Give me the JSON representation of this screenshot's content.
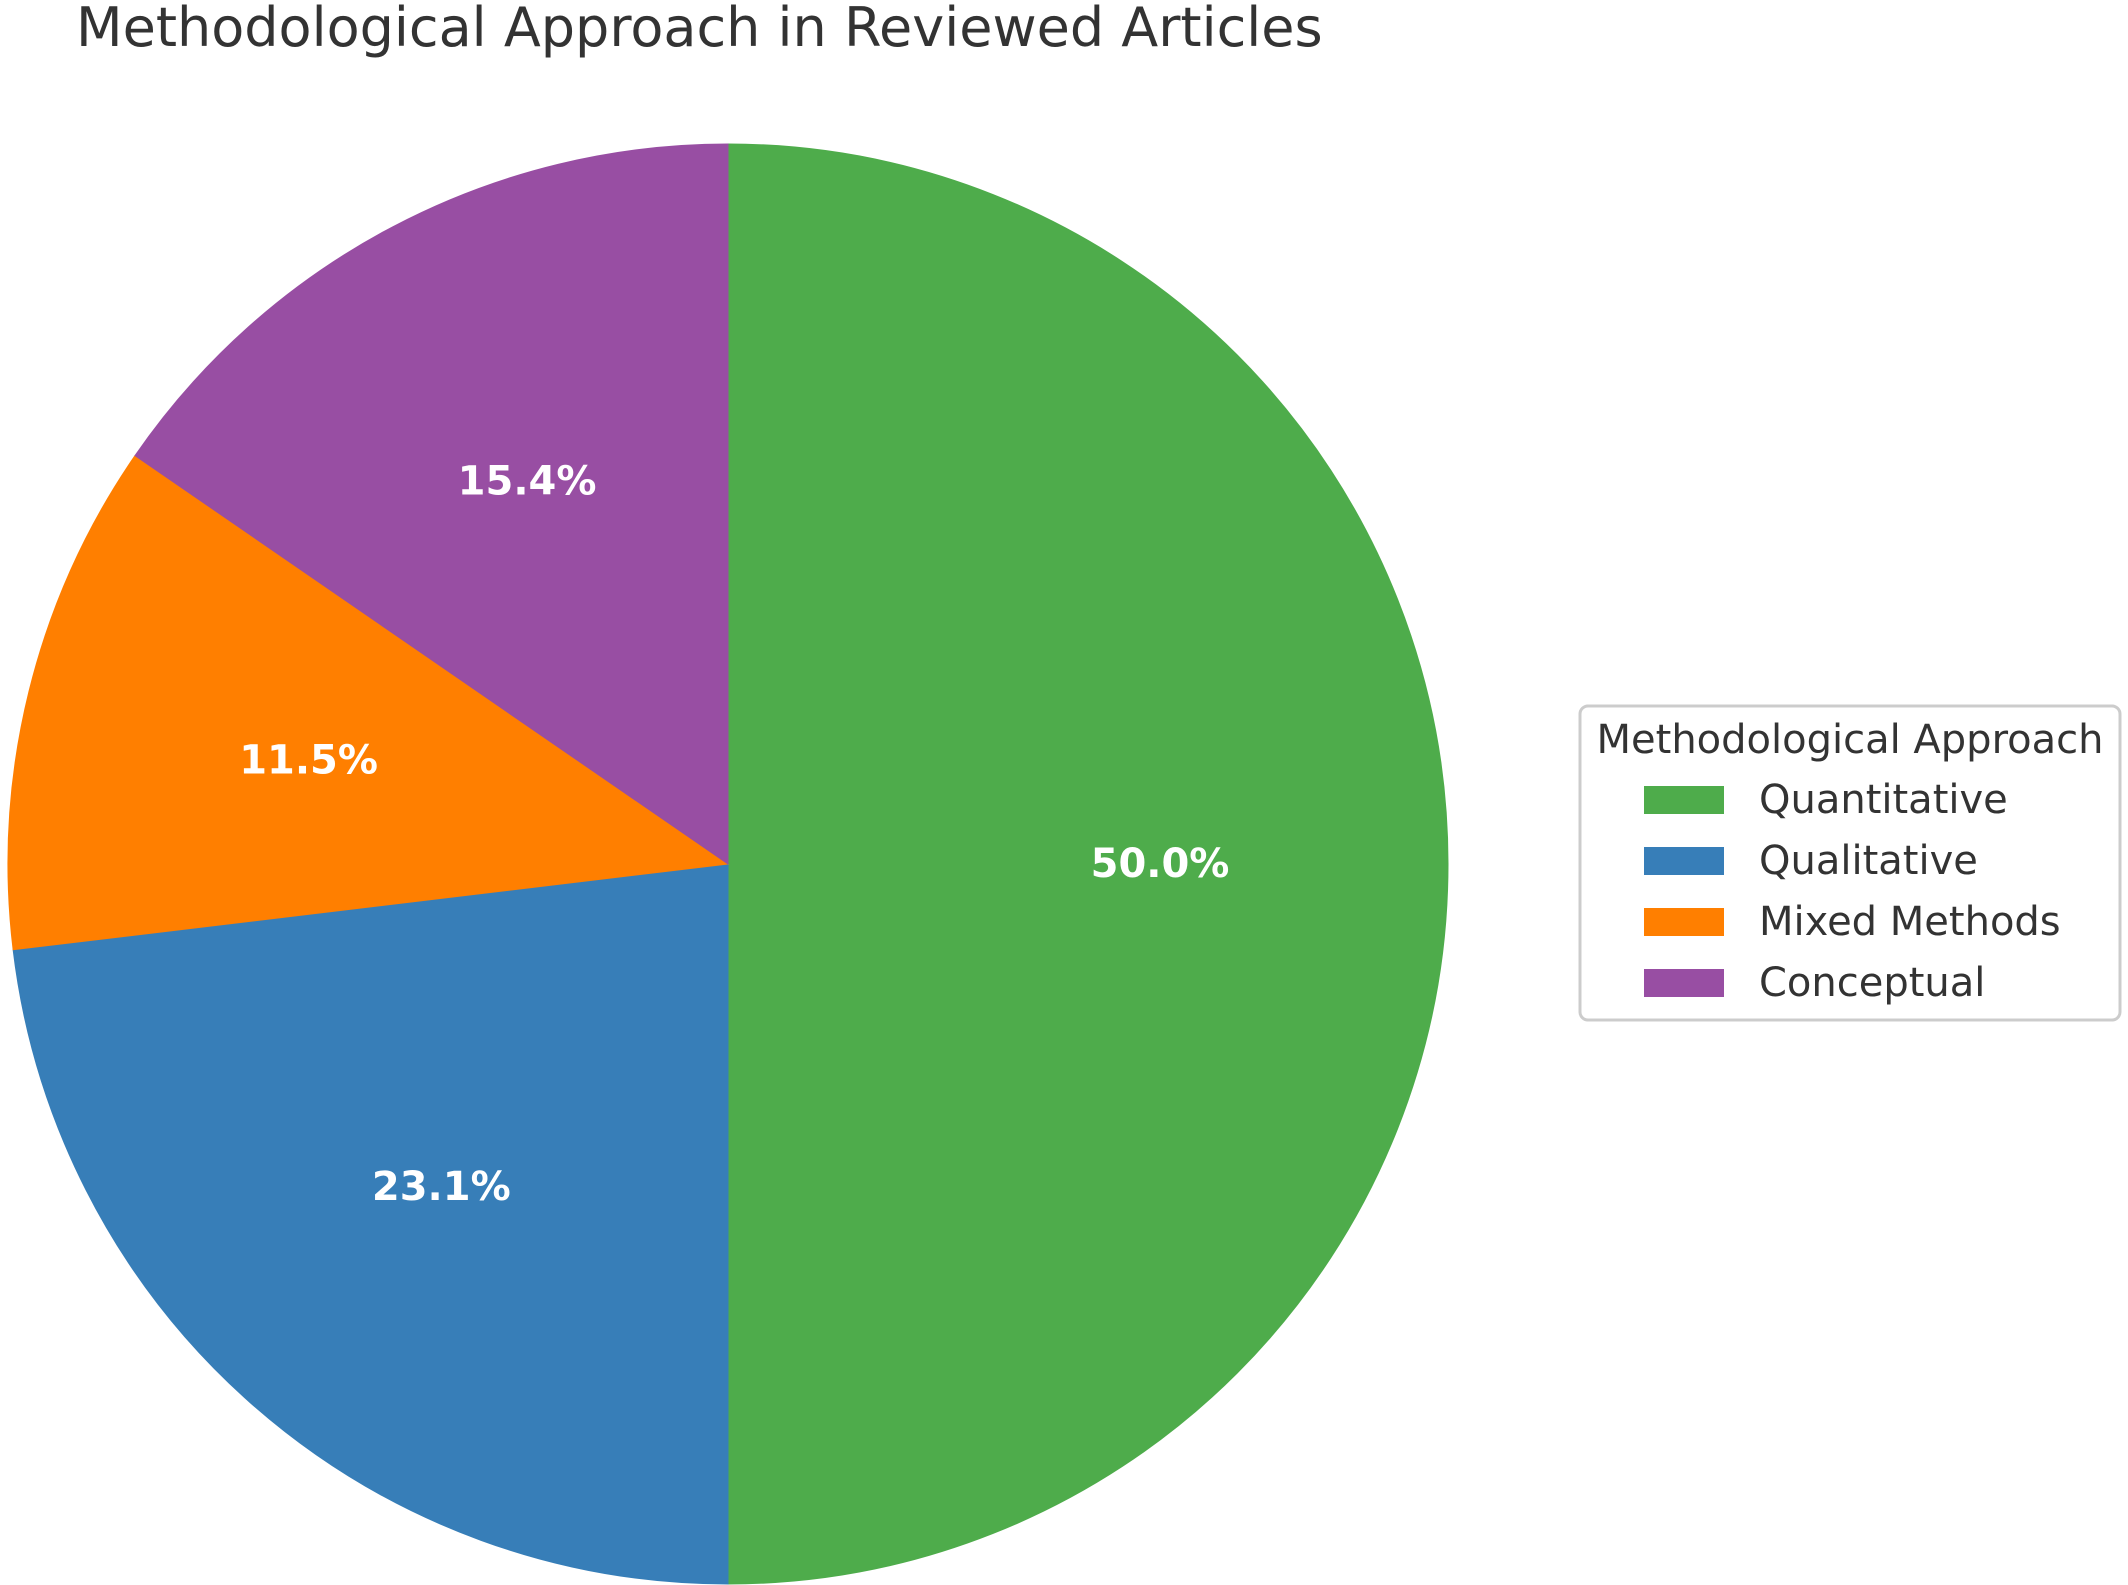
{
  "chart_data": {
    "type": "pie",
    "title": "Methodological Approach in Reviewed Articles",
    "start_angle_deg": 90,
    "direction": "clockwise",
    "slices": [
      {
        "label": "Quantitative",
        "value": 50.0,
        "pct_label": "50.0%",
        "color": "#4eac4b"
      },
      {
        "label": "Qualitative",
        "value": 23.1,
        "pct_label": "23.1%",
        "color": "#377eb8"
      },
      {
        "label": "Mixed Methods",
        "value": 11.5,
        "pct_label": "11.5%",
        "color": "#ff7f00"
      },
      {
        "label": "Conceptual",
        "value": 15.4,
        "pct_label": "15.4%",
        "color": "#984ea3"
      }
    ],
    "legend": {
      "title": "Methodological Approach",
      "placement": "right"
    }
  }
}
